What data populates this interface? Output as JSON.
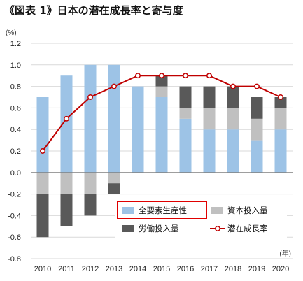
{
  "header": {
    "title": "《図表 1》日本の潜在成長率と寄与度"
  },
  "chart_data": {
    "type": "bar",
    "stacked": true,
    "title": "《図表 1》日本の潜在成長率と寄与度",
    "ylabel": "(%)",
    "xlabel": "(年)",
    "ylim": [
      -0.8,
      1.2
    ],
    "yticks": [
      "1.2",
      "1.0",
      "0.8",
      "0.6",
      "0.4",
      "0.2",
      "0.0",
      "-0.2",
      "-0.4",
      "-0.6",
      "-0.8"
    ],
    "categories": [
      "2010",
      "2011",
      "2012",
      "2013",
      "2014",
      "2015",
      "2016",
      "2017",
      "2018",
      "2019",
      "2020"
    ],
    "grid": "horizontal",
    "legend_position": "inside-bottom-right",
    "series": [
      {
        "name": "全要素生産性",
        "type": "bar",
        "color": "#9dc3e6",
        "values": [
          0.7,
          0.9,
          1.0,
          1.0,
          0.8,
          0.7,
          0.5,
          0.4,
          0.4,
          0.3,
          0.4
        ]
      },
      {
        "name": "資本投入量",
        "type": "bar",
        "color": "#c0c0c0",
        "values": [
          -0.2,
          -0.2,
          -0.2,
          -0.1,
          0.0,
          0.1,
          0.1,
          0.2,
          0.2,
          0.2,
          0.2
        ]
      },
      {
        "name": "労働投入量",
        "type": "bar",
        "color": "#595959",
        "values": [
          -0.4,
          -0.3,
          -0.2,
          -0.1,
          0.0,
          0.1,
          0.2,
          0.2,
          0.2,
          0.2,
          0.1
        ]
      },
      {
        "name": "潜在成長率",
        "type": "line",
        "color": "#c00000",
        "values": [
          0.2,
          0.5,
          0.7,
          0.8,
          0.9,
          0.9,
          0.9,
          0.9,
          0.8,
          0.8,
          0.7
        ]
      }
    ],
    "legend_highlight": {
      "series": "全要素生産性",
      "color": "#e00000"
    }
  }
}
